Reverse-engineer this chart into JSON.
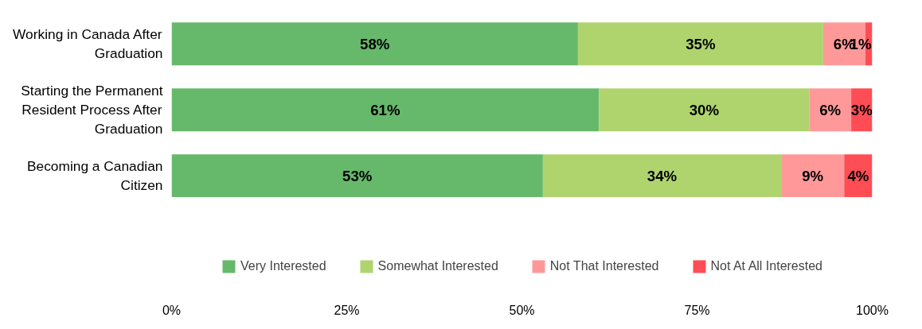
{
  "chart_data": {
    "type": "bar",
    "orientation": "horizontal",
    "stacked": true,
    "categories": [
      "Working in Canada After Graduation",
      "Starting the Permanent Resident Process After Graduation",
      "Becoming a Canadian Citizen"
    ],
    "series": [
      {
        "name": "Very Interested",
        "color": "#66b96b",
        "values": [
          58,
          61,
          53
        ],
        "value_labels": [
          "58%",
          "61%",
          "53%"
        ]
      },
      {
        "name": "Somewhat Interested",
        "color": "#afd46e",
        "values": [
          35,
          30,
          34
        ],
        "value_labels": [
          "35%",
          "30%",
          "34%"
        ]
      },
      {
        "name": "Not That Interested",
        "color": "#ff9999",
        "values": [
          6,
          6,
          9
        ],
        "value_labels": [
          "6%",
          "6%",
          "9%"
        ]
      },
      {
        "name": "Not At All Interested",
        "color": "#ff4d55",
        "values": [
          1,
          3,
          4
        ],
        "value_labels": [
          "1%",
          "3%",
          "4%"
        ]
      }
    ],
    "xlim": [
      0,
      100
    ],
    "xticks": [
      {
        "value": 0,
        "label": "0%"
      },
      {
        "value": 25,
        "label": "25%"
      },
      {
        "value": 50,
        "label": "50%"
      },
      {
        "value": 75,
        "label": "75%"
      },
      {
        "value": 100,
        "label": "100%"
      }
    ],
    "grid": false,
    "legend": "bottom"
  }
}
